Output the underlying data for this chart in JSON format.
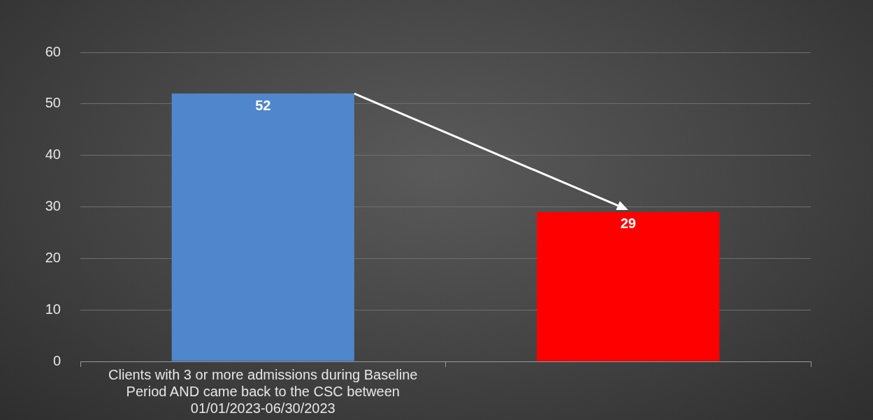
{
  "chart_data": {
    "type": "bar",
    "categories": [
      "Clients with 3 or more admissions during Baseline Period AND came back to the CSC between 01/01/2023-06/30/2023",
      null
    ],
    "values": [
      52,
      29
    ],
    "colors": [
      "#4f86cc",
      "#ff0000"
    ],
    "ylim": [
      0,
      60
    ],
    "yticks": [
      0,
      10,
      20,
      30,
      40,
      50,
      60
    ],
    "grid": "y",
    "legend": false,
    "data_labels": true
  }
}
